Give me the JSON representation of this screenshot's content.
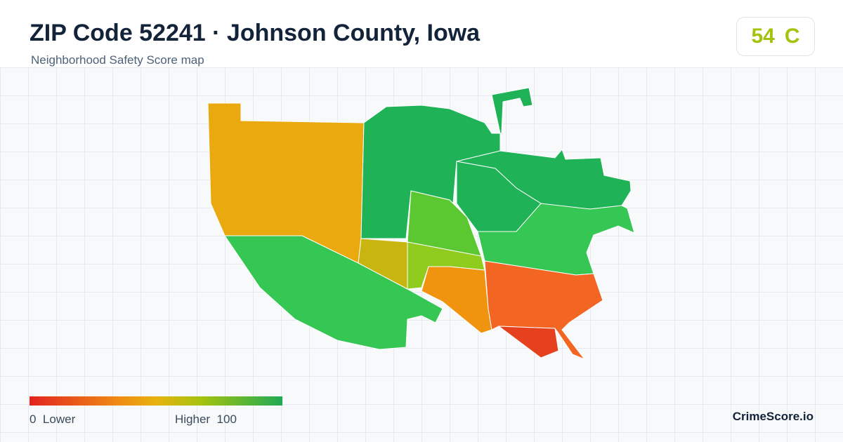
{
  "header": {
    "title": "ZIP Code 52241 · Johnson County, Iowa",
    "subtitle": "Neighborhood Safety Score map"
  },
  "score_badge": {
    "score": "54",
    "grade": "C"
  },
  "legend": {
    "min": "0",
    "min_label": "Lower",
    "max_label": "Higher",
    "max": "100"
  },
  "footer": {
    "brand": "CrimeScore.io"
  }
}
